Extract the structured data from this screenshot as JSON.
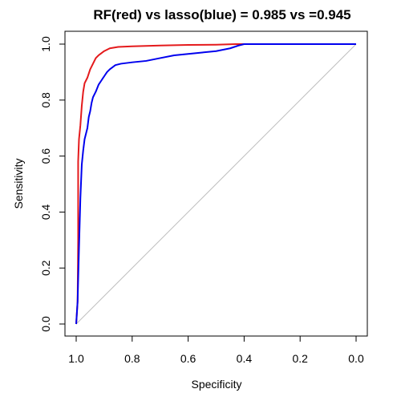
{
  "chart_data": {
    "type": "line",
    "title": "RF(red) vs lasso(blue) = 0.985 vs =0.945",
    "xlabel": "Specificity",
    "ylabel": "Sensitivity",
    "xlim": [
      1.0,
      0.0
    ],
    "ylim": [
      0.0,
      1.0
    ],
    "x_reversed": true,
    "grid": false,
    "x_ticks": [
      1.0,
      0.8,
      0.6,
      0.4,
      0.2,
      0.0
    ],
    "x_tick_labels": [
      "1.0",
      "0.8",
      "0.6",
      "0.4",
      "0.2",
      "0.0"
    ],
    "y_ticks": [
      0.0,
      0.2,
      0.4,
      0.6,
      0.8,
      1.0
    ],
    "y_tick_labels": [
      "0.0",
      "0.2",
      "0.4",
      "0.6",
      "0.8",
      "1.0"
    ],
    "reference_line": {
      "from": [
        1.0,
        0.0
      ],
      "to": [
        0.0,
        1.0
      ],
      "color": "#bfbfbf"
    },
    "series": [
      {
        "color": "#e41a1c",
        "points": [
          [
            1.0,
            0.0
          ],
          [
            0.995,
            0.08
          ],
          [
            0.993,
            0.3
          ],
          [
            0.993,
            0.58
          ],
          [
            0.99,
            0.66
          ],
          [
            0.985,
            0.71
          ],
          [
            0.98,
            0.78
          ],
          [
            0.975,
            0.83
          ],
          [
            0.97,
            0.86
          ],
          [
            0.96,
            0.88
          ],
          [
            0.95,
            0.91
          ],
          [
            0.94,
            0.93
          ],
          [
            0.93,
            0.95
          ],
          [
            0.92,
            0.96
          ],
          [
            0.9,
            0.975
          ],
          [
            0.88,
            0.985
          ],
          [
            0.85,
            0.99
          ],
          [
            0.8,
            0.992
          ],
          [
            0.7,
            0.995
          ],
          [
            0.6,
            0.997
          ],
          [
            0.5,
            0.998
          ],
          [
            0.43,
            1.0
          ],
          [
            0.0,
            1.0
          ]
        ]
      },
      {
        "color": "#0000ee",
        "points": [
          [
            1.0,
            0.0
          ],
          [
            0.995,
            0.08
          ],
          [
            0.99,
            0.27
          ],
          [
            0.985,
            0.45
          ],
          [
            0.98,
            0.57
          ],
          [
            0.975,
            0.62
          ],
          [
            0.97,
            0.66
          ],
          [
            0.96,
            0.7
          ],
          [
            0.955,
            0.74
          ],
          [
            0.95,
            0.76
          ],
          [
            0.945,
            0.79
          ],
          [
            0.94,
            0.81
          ],
          [
            0.93,
            0.83
          ],
          [
            0.92,
            0.855
          ],
          [
            0.91,
            0.87
          ],
          [
            0.9,
            0.885
          ],
          [
            0.89,
            0.9
          ],
          [
            0.88,
            0.91
          ],
          [
            0.86,
            0.925
          ],
          [
            0.84,
            0.93
          ],
          [
            0.8,
            0.935
          ],
          [
            0.75,
            0.94
          ],
          [
            0.7,
            0.95
          ],
          [
            0.65,
            0.96
          ],
          [
            0.6,
            0.965
          ],
          [
            0.55,
            0.97
          ],
          [
            0.5,
            0.975
          ],
          [
            0.45,
            0.985
          ],
          [
            0.42,
            0.995
          ],
          [
            0.4,
            1.0
          ],
          [
            0.0,
            1.0
          ]
        ]
      }
    ]
  }
}
